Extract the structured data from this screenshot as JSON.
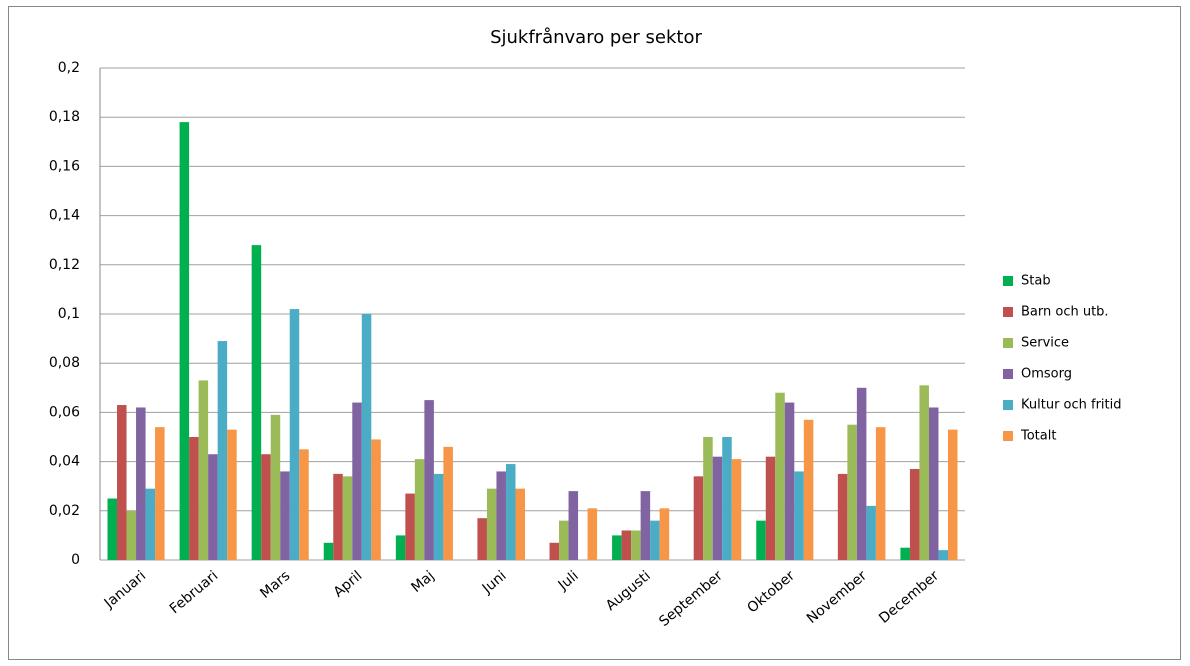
{
  "chart_data": {
    "type": "bar",
    "title": "Sjukfrånvaro per sektor",
    "categories": [
      "Januari",
      "Februari",
      "Mars",
      "April",
      "Maj",
      "Juni",
      "Juli",
      "Augusti",
      "September",
      "Oktober",
      "November",
      "December"
    ],
    "series": [
      {
        "name": "Stab",
        "color": "#00b050",
        "values": [
          0.025,
          0.178,
          0.128,
          0.007,
          0.01,
          0,
          0,
          0.01,
          0,
          0.016,
          0,
          0.005
        ]
      },
      {
        "name": "Barn och utb.",
        "color": "#c0504d",
        "values": [
          0.063,
          0.05,
          0.043,
          0.035,
          0.027,
          0.017,
          0.007,
          0.012,
          0.034,
          0.042,
          0.035,
          0.037
        ]
      },
      {
        "name": "Service",
        "color": "#9bbb59",
        "values": [
          0.02,
          0.073,
          0.059,
          0.034,
          0.041,
          0.029,
          0.016,
          0.012,
          0.05,
          0.068,
          0.055,
          0.071
        ]
      },
      {
        "name": "Omsorg",
        "color": "#8064a2",
        "values": [
          0.062,
          0.043,
          0.036,
          0.064,
          0.065,
          0.036,
          0.028,
          0.028,
          0.042,
          0.064,
          0.07,
          0.062
        ]
      },
      {
        "name": "Kultur och fritid",
        "color": "#4bacc6",
        "values": [
          0.029,
          0.089,
          0.102,
          0.1,
          0.035,
          0.039,
          0,
          0.016,
          0.05,
          0.036,
          0.022,
          0.004
        ]
      },
      {
        "name": "Totalt",
        "color": "#f79646",
        "values": [
          0.054,
          0.053,
          0.045,
          0.049,
          0.046,
          0.029,
          0.021,
          0.021,
          0.041,
          0.057,
          0.054,
          0.053
        ]
      }
    ],
    "ylim": [
      0,
      0.2
    ],
    "yticks": [
      0,
      {
        "value": 0.02,
        "label": "0,02"
      },
      {
        "value": 0.04,
        "label": "0,04"
      },
      {
        "value": 0.06,
        "label": "0,06"
      },
      {
        "value": 0.08,
        "label": "0,08"
      },
      {
        "value": 0.1,
        "label": "0,1"
      },
      {
        "value": 0.12,
        "label": "0,12"
      },
      {
        "value": 0.14,
        "label": "0,14"
      },
      {
        "value": 0.16,
        "label": "0,16"
      },
      {
        "value": 0.18,
        "label": "0,18"
      },
      {
        "value": 0.2,
        "label": "0,2"
      }
    ],
    "grid": true,
    "legend": "right"
  }
}
